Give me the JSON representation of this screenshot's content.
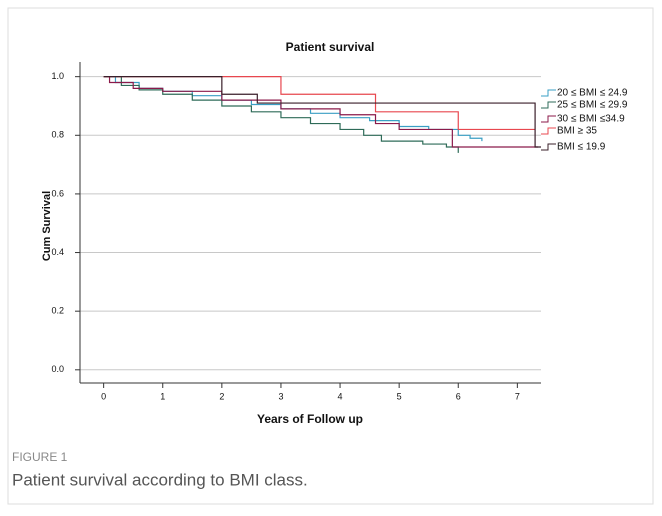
{
  "chart_data": {
    "type": "step",
    "title": "Patient survival",
    "xlabel": "Years of Follow up",
    "ylabel": "Cum Survival",
    "xlim": [
      -0.4,
      7.4
    ],
    "ylim": [
      -0.045,
      1.05
    ],
    "xticks": [
      0,
      1,
      2,
      3,
      4,
      5,
      6,
      7
    ],
    "yticks": [
      {
        "value": 0,
        "label": "0.0"
      },
      0.2,
      0.4,
      0.6,
      0.8,
      {
        "value": 1,
        "label": "1.0"
      }
    ],
    "grid": true,
    "series": [
      {
        "name": "20 ≤ BMI ≤ 24.9",
        "color": "#3a9fc4",
        "x": [
          0,
          0.2,
          0.6,
          1,
          1.5,
          2,
          2.5,
          3,
          3.5,
          4,
          4.5,
          5,
          5.5,
          6,
          6.2,
          6.4
        ],
        "values": [
          1,
          0.98,
          0.96,
          0.95,
          0.935,
          0.92,
          0.905,
          0.89,
          0.875,
          0.86,
          0.85,
          0.83,
          0.82,
          0.8,
          0.79,
          0.78
        ]
      },
      {
        "name": "25 ≤ BMI ≤ 29.9",
        "color": "#2e6b58",
        "x": [
          0,
          0.3,
          0.6,
          1,
          1.5,
          2,
          2.5,
          3,
          3.5,
          4,
          4.4,
          4.7,
          5.4,
          5.8,
          6
        ],
        "values": [
          1,
          0.97,
          0.955,
          0.94,
          0.92,
          0.9,
          0.88,
          0.86,
          0.84,
          0.82,
          0.8,
          0.78,
          0.77,
          0.76,
          0.74
        ]
      },
      {
        "name": "30 ≤ BMI ≤34.9",
        "color": "#8b1a4a",
        "x": [
          0,
          0.1,
          0.5,
          1,
          2,
          3,
          4,
          4.6,
          5,
          5.9,
          7.35
        ],
        "values": [
          1,
          0.98,
          0.96,
          0.95,
          0.92,
          0.89,
          0.87,
          0.84,
          0.82,
          0.76,
          0.76
        ]
      },
      {
        "name": "BMI ≥ 35",
        "color": "#e8474f",
        "x": [
          0,
          3,
          4.6,
          6,
          7.3
        ],
        "values": [
          1,
          0.94,
          0.88,
          0.82,
          0.82
        ]
      },
      {
        "name": "BMI ≤ 19.9",
        "color": "#3a1f2a",
        "x": [
          0,
          2,
          2.6,
          7.3,
          7.4
        ],
        "values": [
          1,
          0.94,
          0.91,
          0.76,
          0.76
        ]
      }
    ]
  },
  "figure": {
    "label": "FIGURE 1",
    "caption": "Patient survival according to BMI class."
  }
}
